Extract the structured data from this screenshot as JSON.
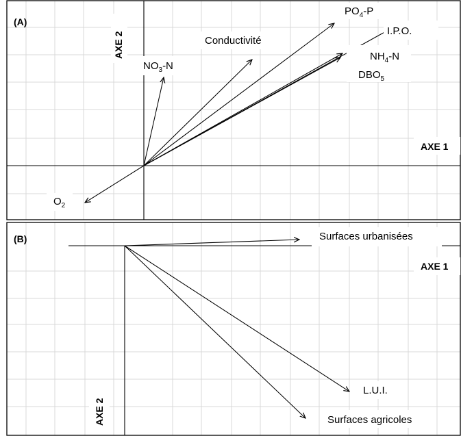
{
  "panel_a": {
    "tag": "(A)",
    "axis1_label": "AXE 1",
    "axis2_label": "AXE 2",
    "vectors": [
      {
        "name": "PO4-P",
        "label_main": "PO",
        "label_sub": "4",
        "label_tail": "-P"
      },
      {
        "name": "I.P.O.",
        "label_main": "I.P.O.",
        "label_sub": "",
        "label_tail": ""
      },
      {
        "name": "NH4-N",
        "label_main": "NH",
        "label_sub": "4",
        "label_tail": "-N"
      },
      {
        "name": "DBO5",
        "label_main": "DBO",
        "label_sub": "5",
        "label_tail": ""
      },
      {
        "name": "Conductivité",
        "label_main": "Conductivité",
        "label_sub": "",
        "label_tail": ""
      },
      {
        "name": "NO3-N",
        "label_main": "NO",
        "label_sub": "3",
        "label_tail": "-N"
      },
      {
        "name": "O2",
        "label_main": "O",
        "label_sub": "2",
        "label_tail": ""
      }
    ]
  },
  "panel_b": {
    "tag": "(B)",
    "axis1_label": "AXE 1",
    "axis2_label": "AXE 2",
    "vectors": [
      {
        "name": "Surfaces urbanisées",
        "label_main": "Surfaces urbanisées",
        "label_sub": "",
        "label_tail": ""
      },
      {
        "name": "L.U.I.",
        "label_main": "L.U.I.",
        "label_sub": "",
        "label_tail": ""
      },
      {
        "name": "Surfaces agricoles",
        "label_main": "Surfaces agricoles",
        "label_sub": "",
        "label_tail": ""
      }
    ]
  }
}
